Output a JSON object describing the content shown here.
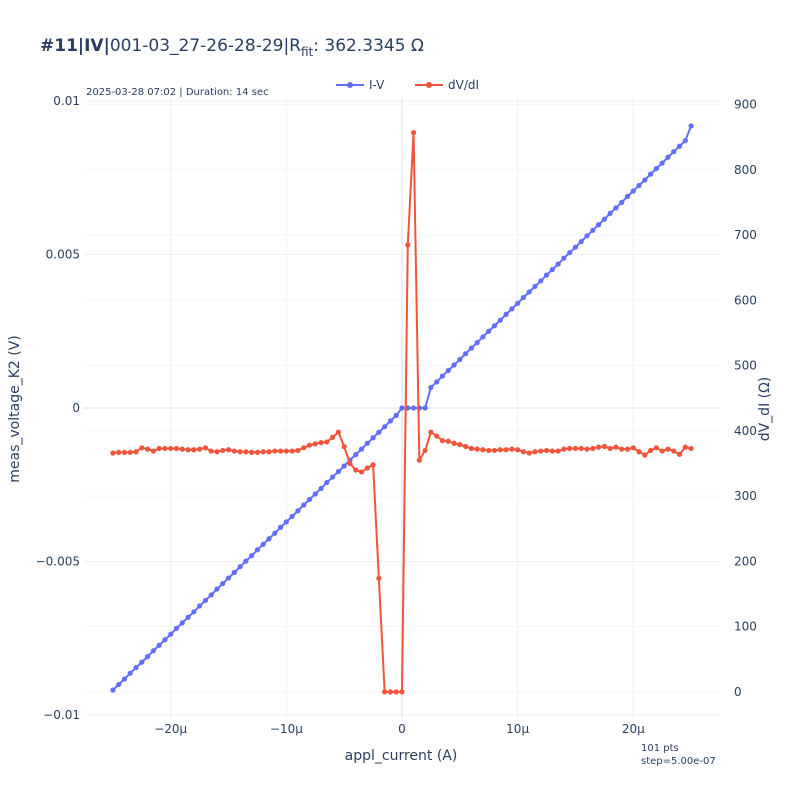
{
  "title": {
    "prefix_bold": "#11|IV|",
    "text": "001-03_27-26-28-29|R",
    "sub": "fit",
    "suffix": ": 362.3345 Ω"
  },
  "info_text": "2025-03-28 07:02 | Duration: 14 sec",
  "points_text": "101 pts",
  "step_text": "step=5.00e-07",
  "chart_data": {
    "type": "line",
    "xlabel": "appl_current (A)",
    "ylabel": "meas_voltage_K2 (V)",
    "y2label": "dV_dI (Ω)",
    "xlim": [
      -2.75e-05,
      2.75e-05
    ],
    "ylim": [
      -0.0101,
      0.0101
    ],
    "y2lim": [
      -40,
      910
    ],
    "x_ticks": [
      -2e-05,
      -1e-05,
      0,
      1e-05,
      2e-05
    ],
    "x_tick_labels": [
      "−20μ",
      "−10μ",
      "0",
      "10μ",
      "20μ"
    ],
    "y_ticks": [
      -0.01,
      -0.005,
      0,
      0.005,
      0.01
    ],
    "y_tick_labels": [
      "−0.01",
      "−0.005",
      "0",
      "0.005",
      "0.01"
    ],
    "y2_ticks": [
      0,
      100,
      200,
      300,
      400,
      500,
      600,
      700,
      800,
      900
    ],
    "y2_tick_labels": [
      "0",
      "100",
      "200",
      "300",
      "400",
      "500",
      "600",
      "700",
      "800",
      "900"
    ],
    "legend_position": "top-center",
    "grid": true,
    "series": [
      {
        "name": "I-V",
        "axis": "y",
        "color": "#636efa",
        "x": [
          -2.5e-05,
          -2.45e-05,
          -2.4e-05,
          -2.35e-05,
          -2.3e-05,
          -2.25e-05,
          -2.2e-05,
          -2.15e-05,
          -2.1e-05,
          -2.05e-05,
          -2e-05,
          -1.95e-05,
          -1.9e-05,
          -1.85e-05,
          -1.8e-05,
          -1.75e-05,
          -1.7e-05,
          -1.65e-05,
          -1.6e-05,
          -1.55e-05,
          -1.5e-05,
          -1.45e-05,
          -1.4e-05,
          -1.35e-05,
          -1.3e-05,
          -1.25e-05,
          -1.2e-05,
          -1.15e-05,
          -1.1e-05,
          -1.05e-05,
          -1e-05,
          -9.5e-06,
          -9e-06,
          -8.5e-06,
          -8e-06,
          -7.5e-06,
          -7e-06,
          -6.5e-06,
          -6e-06,
          -5.5e-06,
          -5e-06,
          -4.5e-06,
          -4e-06,
          -3.5e-06,
          -3e-06,
          -2.5e-06,
          -2e-06,
          -1.5e-06,
          -1e-06,
          -5e-07,
          0,
          5e-07,
          1e-06,
          1.5e-06,
          2e-06,
          2.5e-06,
          3e-06,
          3.5e-06,
          4e-06,
          4.5e-06,
          5e-06,
          5.5e-06,
          6e-06,
          6.5e-06,
          7e-06,
          7.5e-06,
          8e-06,
          8.5e-06,
          9e-06,
          9.5e-06,
          1e-05,
          1.05e-05,
          1.1e-05,
          1.15e-05,
          1.2e-05,
          1.25e-05,
          1.3e-05,
          1.35e-05,
          1.4e-05,
          1.45e-05,
          1.5e-05,
          1.55e-05,
          1.6e-05,
          1.65e-05,
          1.7e-05,
          1.75e-05,
          1.8e-05,
          1.85e-05,
          1.9e-05,
          1.95e-05,
          2e-05,
          2.05e-05,
          2.1e-05,
          2.15e-05,
          2.2e-05,
          2.25e-05,
          2.3e-05,
          2.35e-05,
          2.4e-05,
          2.45e-05,
          2.5e-05
        ],
        "y": [
          -0.00919,
          -0.00901,
          -0.00883,
          -0.00864,
          -0.00846,
          -0.00828,
          -0.0081,
          -0.00791,
          -0.00773,
          -0.00755,
          -0.00737,
          -0.00718,
          -0.007,
          -0.00682,
          -0.00664,
          -0.00645,
          -0.00627,
          -0.00609,
          -0.0059,
          -0.00572,
          -0.00554,
          -0.00536,
          -0.00517,
          -0.00499,
          -0.00481,
          -0.00462,
          -0.00444,
          -0.00426,
          -0.00408,
          -0.00389,
          -0.00371,
          -0.00353,
          -0.00335,
          -0.00316,
          -0.00298,
          -0.0028,
          -0.00262,
          -0.00243,
          -0.00225,
          -0.00207,
          -0.00189,
          -0.0017,
          -0.00152,
          -0.00134,
          -0.00115,
          -0.00097,
          -0.00079,
          -0.00061,
          -0.00042,
          -0.00024,
          0.0,
          0.0,
          0.0,
          0.0,
          0.0,
          0.00067,
          0.00085,
          0.00104,
          0.00122,
          0.0014,
          0.00158,
          0.00177,
          0.00195,
          0.00213,
          0.00232,
          0.0025,
          0.00268,
          0.00286,
          0.00305,
          0.00323,
          0.00341,
          0.0036,
          0.00378,
          0.00396,
          0.00414,
          0.00433,
          0.00451,
          0.00469,
          0.00488,
          0.00506,
          0.00524,
          0.00542,
          0.00561,
          0.00579,
          0.00597,
          0.00615,
          0.00634,
          0.00652,
          0.0067,
          0.00689,
          0.00707,
          0.00725,
          0.00743,
          0.00762,
          0.0078,
          0.00798,
          0.00817,
          0.00835,
          0.00853,
          0.00871,
          0.00919
        ]
      },
      {
        "name": "dV/dI",
        "axis": "y2",
        "color": "#ef553b",
        "x": [
          -2.5e-05,
          -2.45e-05,
          -2.4e-05,
          -2.35e-05,
          -2.3e-05,
          -2.25e-05,
          -2.2e-05,
          -2.15e-05,
          -2.1e-05,
          -2.05e-05,
          -2e-05,
          -1.95e-05,
          -1.9e-05,
          -1.85e-05,
          -1.8e-05,
          -1.75e-05,
          -1.7e-05,
          -1.65e-05,
          -1.6e-05,
          -1.55e-05,
          -1.5e-05,
          -1.45e-05,
          -1.4e-05,
          -1.35e-05,
          -1.3e-05,
          -1.25e-05,
          -1.2e-05,
          -1.15e-05,
          -1.1e-05,
          -1.05e-05,
          -1e-05,
          -9.5e-06,
          -9e-06,
          -8.5e-06,
          -8e-06,
          -7.5e-06,
          -7e-06,
          -6.5e-06,
          -6e-06,
          -5.5e-06,
          -5e-06,
          -4.5e-06,
          -4e-06,
          -3.5e-06,
          -3e-06,
          -2.5e-06,
          -2e-06,
          -1.5e-06,
          -1e-06,
          -5e-07,
          0,
          5e-07,
          1e-06,
          1.5e-06,
          2e-06,
          2.5e-06,
          3e-06,
          3.5e-06,
          4e-06,
          4.5e-06,
          5e-06,
          5.5e-06,
          6e-06,
          6.5e-06,
          7e-06,
          7.5e-06,
          8e-06,
          8.5e-06,
          9e-06,
          9.5e-06,
          1e-05,
          1.05e-05,
          1.1e-05,
          1.15e-05,
          1.2e-05,
          1.25e-05,
          1.3e-05,
          1.35e-05,
          1.4e-05,
          1.45e-05,
          1.5e-05,
          1.55e-05,
          1.6e-05,
          1.65e-05,
          1.7e-05,
          1.75e-05,
          1.8e-05,
          1.85e-05,
          1.9e-05,
          1.95e-05,
          2e-05,
          2.05e-05,
          2.1e-05,
          2.15e-05,
          2.2e-05,
          2.25e-05,
          2.3e-05,
          2.35e-05,
          2.4e-05,
          2.45e-05,
          2.5e-05
        ],
        "y": [
          366,
          367,
          367,
          367,
          368,
          374,
          372,
          369,
          373,
          373,
          373,
          373,
          372,
          371,
          371,
          372,
          374,
          369,
          368,
          370,
          371,
          369,
          368,
          368,
          367,
          367,
          368,
          368,
          369,
          369,
          369,
          369,
          370,
          374,
          378,
          380,
          382,
          383,
          390,
          398,
          376,
          350,
          340,
          337,
          343,
          348,
          174,
          0,
          0,
          0,
          0,
          685,
          857,
          355,
          370,
          398,
          392,
          385,
          384,
          381,
          379,
          376,
          373,
          372,
          371,
          370,
          370,
          371,
          371,
          372,
          371,
          368,
          366,
          368,
          369,
          370,
          369,
          369,
          372,
          373,
          373,
          373,
          372,
          373,
          375,
          376,
          373,
          375,
          372,
          372,
          374,
          368,
          363,
          370,
          374,
          369,
          372,
          369,
          364,
          375,
          373
        ]
      }
    ]
  }
}
